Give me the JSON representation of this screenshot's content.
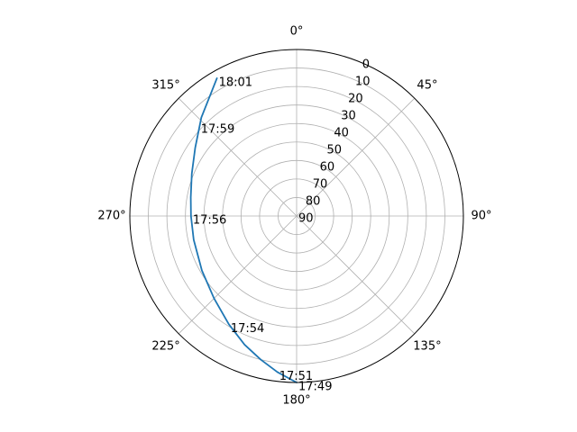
{
  "chart_data": {
    "type": "polar-line",
    "theta_direction": "clockwise",
    "theta_zero": "top",
    "radial_axis": "altitude (90 at center, 0 at edge)",
    "theta_ticks": [
      {
        "deg": 0,
        "label": "0°"
      },
      {
        "deg": 45,
        "label": "45°"
      },
      {
        "deg": 90,
        "label": "90°"
      },
      {
        "deg": 135,
        "label": "135°"
      },
      {
        "deg": 180,
        "label": "180°"
      },
      {
        "deg": 225,
        "label": "225°"
      },
      {
        "deg": 270,
        "label": "270°"
      },
      {
        "deg": 315,
        "label": "315°"
      }
    ],
    "r_ticks": [
      {
        "value": 0,
        "label": "0"
      },
      {
        "value": 10,
        "label": "10"
      },
      {
        "value": 20,
        "label": "20"
      },
      {
        "value": 30,
        "label": "30"
      },
      {
        "value": 40,
        "label": "40"
      },
      {
        "value": 50,
        "label": "50"
      },
      {
        "value": 60,
        "label": "60"
      },
      {
        "value": 70,
        "label": "70"
      },
      {
        "value": 80,
        "label": "80"
      },
      {
        "value": 90,
        "label": "90"
      }
    ],
    "r_range": [
      90,
      0
    ],
    "grid": true,
    "line_color": "#1f77b4",
    "series": [
      {
        "azimuth_deg": [
          180,
          187,
          194,
          202,
          212,
          225,
          240,
          257,
          270,
          280,
          292,
          304,
          316,
          330
        ],
        "altitude": [
          0,
          5,
          10,
          15,
          21,
          27,
          31,
          33,
          33,
          32,
          29,
          24,
          16,
          4
        ]
      }
    ],
    "point_labels": [
      {
        "text": "18:01",
        "azimuth_deg": 330,
        "altitude": 4
      },
      {
        "text": "17:59",
        "azimuth_deg": 313,
        "altitude": 18
      },
      {
        "text": "17:56",
        "azimuth_deg": 270,
        "altitude": 33
      },
      {
        "text": "17:54",
        "azimuth_deg": 212,
        "altitude": 21
      },
      {
        "text": "17:51",
        "azimuth_deg": 187,
        "altitude": 5
      },
      {
        "text": "17:49",
        "azimuth_deg": 180,
        "altitude": 0
      }
    ]
  }
}
